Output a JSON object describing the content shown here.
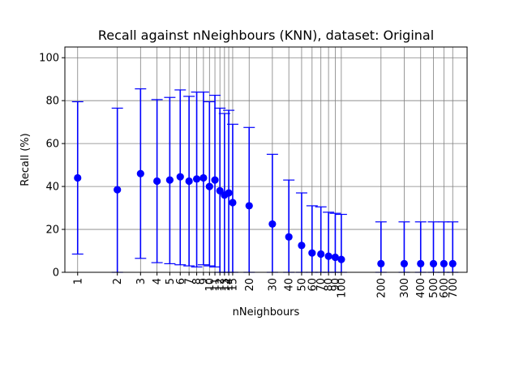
{
  "chart_data": {
    "type": "scatter",
    "title": "Recall against nNeighbours (KNN), dataset: Original",
    "xlabel": "nNeighbours",
    "ylabel": "Recall (%)",
    "x_scale": "log",
    "xlim": [
      0.8,
      900
    ],
    "ylim": [
      0,
      105
    ],
    "yticks": [
      0,
      20,
      40,
      60,
      80,
      100
    ],
    "grid": true,
    "color": "#0000ff",
    "series": [
      {
        "x": [
          1,
          2,
          3,
          4,
          5,
          6,
          7,
          8,
          9,
          10,
          11,
          12,
          13,
          14,
          15,
          20,
          30,
          40,
          50,
          60,
          70,
          80,
          90,
          100,
          200,
          300,
          400,
          500,
          600,
          700
        ],
        "y": [
          44,
          38.5,
          46,
          42.5,
          43,
          44.5,
          42.5,
          43.5,
          44,
          40,
          43,
          38,
          36,
          37,
          32.5,
          31,
          22.5,
          16.5,
          12.5,
          9,
          8.5,
          7.5,
          7,
          6,
          4,
          4,
          4,
          4,
          4,
          4
        ],
        "err_low": [
          8.5,
          0,
          6.5,
          4.5,
          4,
          3.5,
          3,
          2.5,
          3.5,
          3,
          2.5,
          0,
          0,
          0,
          0,
          0,
          0,
          0,
          0,
          0,
          0,
          0,
          0,
          0,
          0,
          0,
          0,
          0,
          0,
          0
        ],
        "err_high": [
          79.5,
          76.5,
          85.5,
          80.5,
          81.5,
          85,
          82,
          84,
          84,
          79.5,
          82.5,
          76.5,
          74,
          75.5,
          69,
          67.5,
          55,
          43,
          37,
          31,
          30.5,
          28,
          27.5,
          27,
          23.5,
          23.5,
          23.5,
          23.5,
          23.5,
          23.5
        ]
      }
    ]
  }
}
